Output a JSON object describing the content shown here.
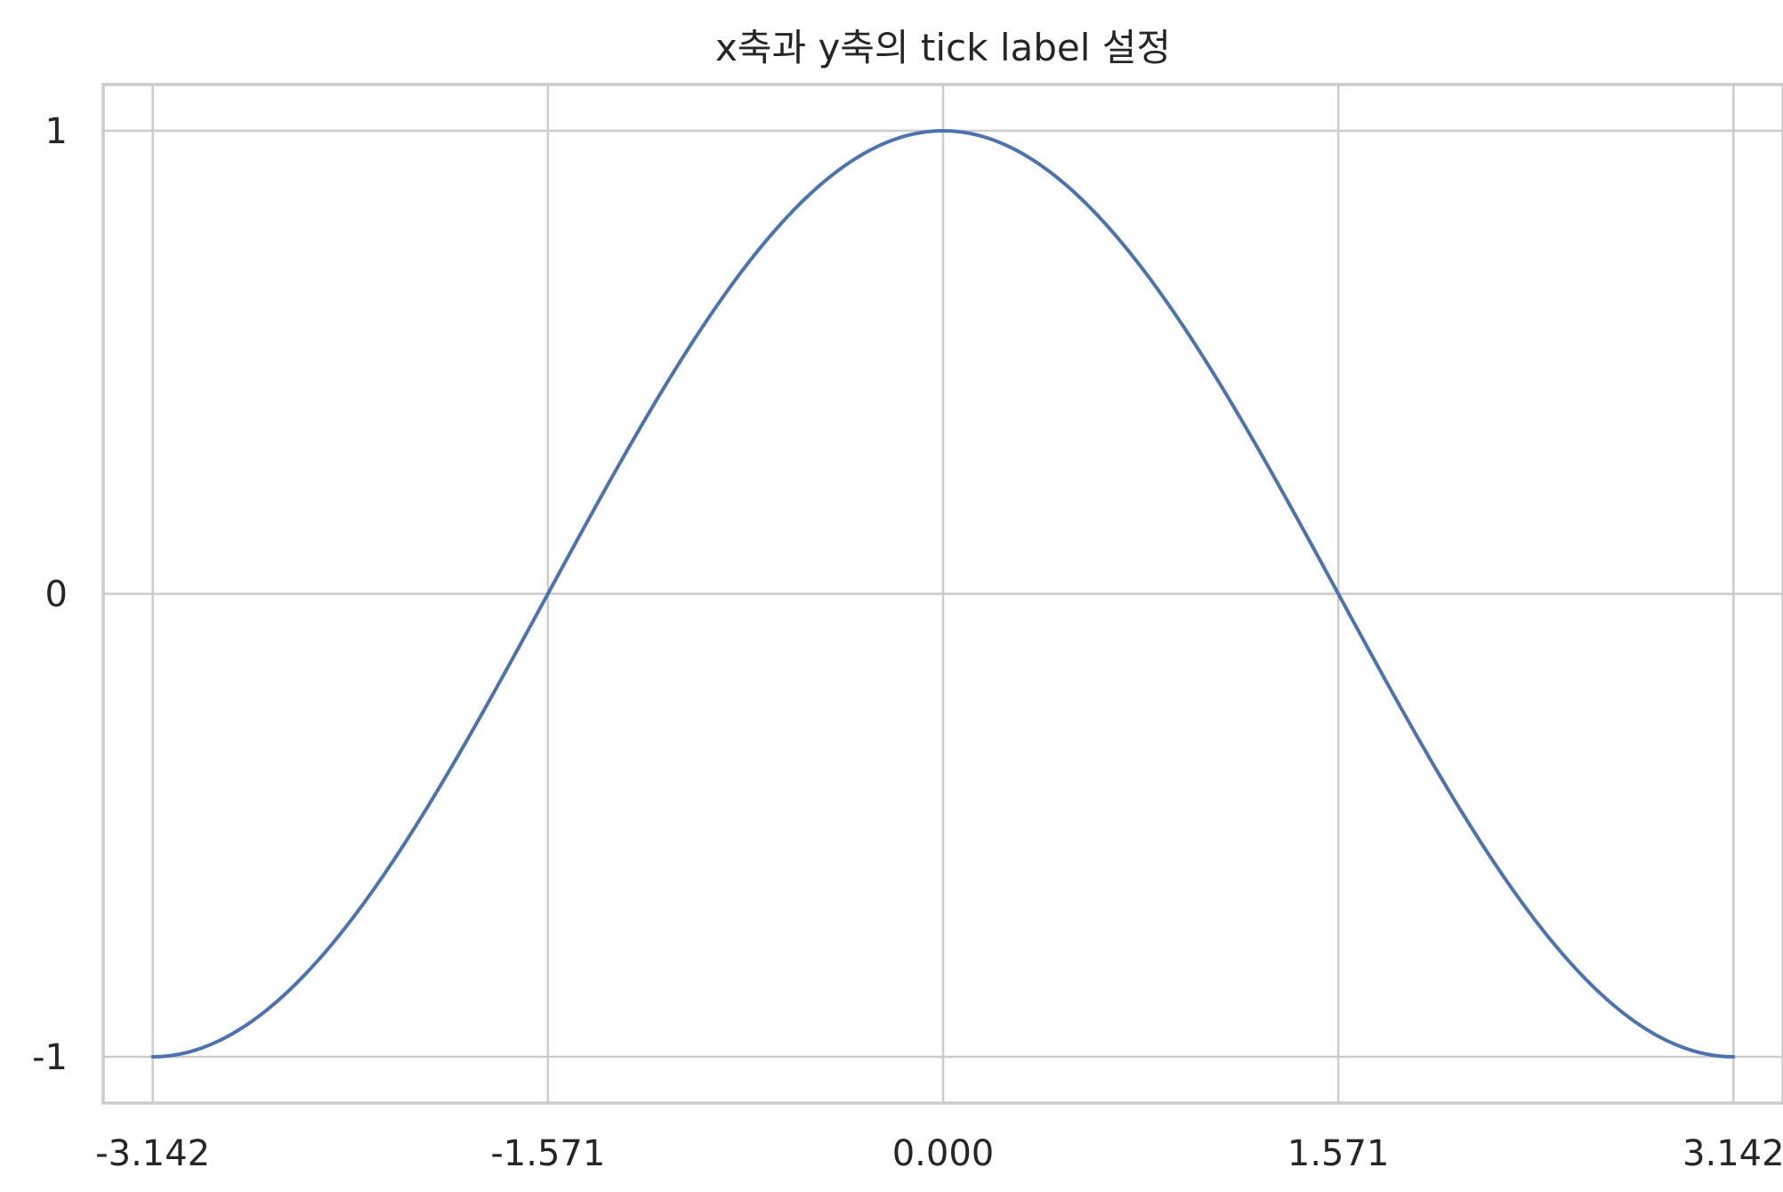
{
  "chart_data": {
    "type": "line",
    "title": "x축과 y축의 tick label 설정",
    "xlabel": "",
    "ylabel": "",
    "xlim": [
      -3.3385,
      3.3385
    ],
    "ylim": [
      -1.1,
      1.1
    ],
    "grid": true,
    "xticks": [
      -3.14159,
      -1.5708,
      0,
      1.5708,
      3.14159
    ],
    "xticklabels": [
      "-3.142",
      "-1.571",
      "0.000",
      "1.571",
      "3.142"
    ],
    "yticks": [
      -1,
      0,
      1
    ],
    "yticklabels": [
      "-1",
      "0",
      "1"
    ],
    "series": [
      {
        "function": "cos(x)",
        "color": "#4c72b0",
        "x": [
          -3.14159,
          -2.74889,
          -2.35619,
          -1.9635,
          -1.5708,
          -1.1781,
          -0.7854,
          -0.3927,
          0,
          0.3927,
          0.7854,
          1.1781,
          1.5708,
          1.9635,
          2.35619,
          2.74889,
          3.14159
        ],
        "y": [
          -1,
          -0.92388,
          -0.70711,
          -0.38268,
          0,
          0.38268,
          0.70711,
          0.92388,
          1,
          0.92388,
          0.70711,
          0.38268,
          0,
          -0.38268,
          -0.70711,
          -0.92388,
          -1
        ]
      }
    ]
  }
}
